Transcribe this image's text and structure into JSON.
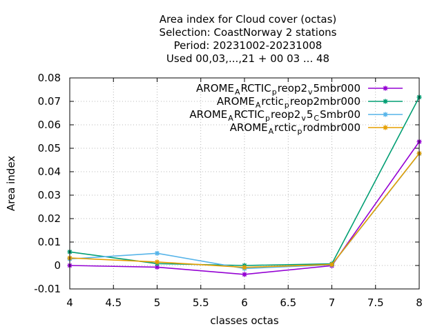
{
  "chart_data": {
    "type": "line",
    "title_lines": [
      "Area index  for Cloud cover (octas)",
      "Selection: CoastNorway      2 stations",
      "Period: 20231002-20231008",
      "Used  00,03,...,21  + 00 03 ... 48"
    ],
    "xlabel": "classes octas",
    "ylabel": "Area index",
    "xlim": [
      4,
      8
    ],
    "ylim": [
      -0.01,
      0.08
    ],
    "x_ticks": [
      4,
      4.5,
      5,
      5.5,
      6,
      6.5,
      7,
      7.5,
      8
    ],
    "x_tick_labels": [
      "4",
      "4.5",
      "5",
      "5.5",
      "6",
      "6.5",
      "7",
      "7.5",
      "8"
    ],
    "y_ticks": [
      -0.01,
      0,
      0.01,
      0.02,
      0.03,
      0.04,
      0.05,
      0.06,
      0.07,
      0.08
    ],
    "y_tick_labels": [
      "-0.01",
      "0",
      "0.01",
      "0.02",
      "0.03",
      "0.04",
      "0.05",
      "0.06",
      "0.07",
      "0.08"
    ],
    "grid": true,
    "legend_position": "top-right",
    "x": [
      4,
      5,
      6,
      7,
      8
    ],
    "series": [
      {
        "name": "AROME_ARCTIC_preop2_v5mbr000",
        "legend_parts": [
          [
            "AROME",
            "n"
          ],
          [
            "A",
            "sub"
          ],
          [
            "RCTIC",
            "n"
          ],
          [
            "p",
            "sub"
          ],
          [
            "reop2",
            "n"
          ],
          [
            "v",
            "sub"
          ],
          [
            "5mbr000",
            "n"
          ]
        ],
        "color": "#9400d3",
        "values": [
          0.0,
          -0.0007,
          -0.0038,
          -0.0001,
          0.0528
        ]
      },
      {
        "name": "AROME_Arctic_preop2mbr000",
        "legend_parts": [
          [
            "AROME",
            "n"
          ],
          [
            "A",
            "sub"
          ],
          [
            "rctic",
            "n"
          ],
          [
            "p",
            "sub"
          ],
          [
            "reop2mbr000",
            "n"
          ]
        ],
        "color": "#009e73",
        "values": [
          0.0058,
          0.0008,
          0.0,
          0.0007,
          0.0718
        ]
      },
      {
        "name": "AROME_ARCTIC_preop2_v5_CSmbr00",
        "legend_parts": [
          [
            "AROME",
            "n"
          ],
          [
            "A",
            "sub"
          ],
          [
            "RCTIC",
            "n"
          ],
          [
            "p",
            "sub"
          ],
          [
            "reop2",
            "n"
          ],
          [
            "v",
            "sub"
          ],
          [
            "5",
            "n"
          ],
          [
            "C",
            "sub"
          ],
          [
            "Smbr00",
            "n"
          ]
        ],
        "color": "#56b4e9",
        "values": [
          0.0028,
          0.0052,
          -0.0013,
          0.0003,
          0.0477
        ]
      },
      {
        "name": "AROME_Arctic_prodmbr000",
        "legend_parts": [
          [
            "AROME",
            "n"
          ],
          [
            "A",
            "sub"
          ],
          [
            "rctic",
            "n"
          ],
          [
            "p",
            "sub"
          ],
          [
            "rodmbr000",
            "n"
          ]
        ],
        "color": "#e69f00",
        "values": [
          0.0032,
          0.0015,
          -0.0008,
          0.0004,
          0.0478
        ]
      }
    ]
  }
}
